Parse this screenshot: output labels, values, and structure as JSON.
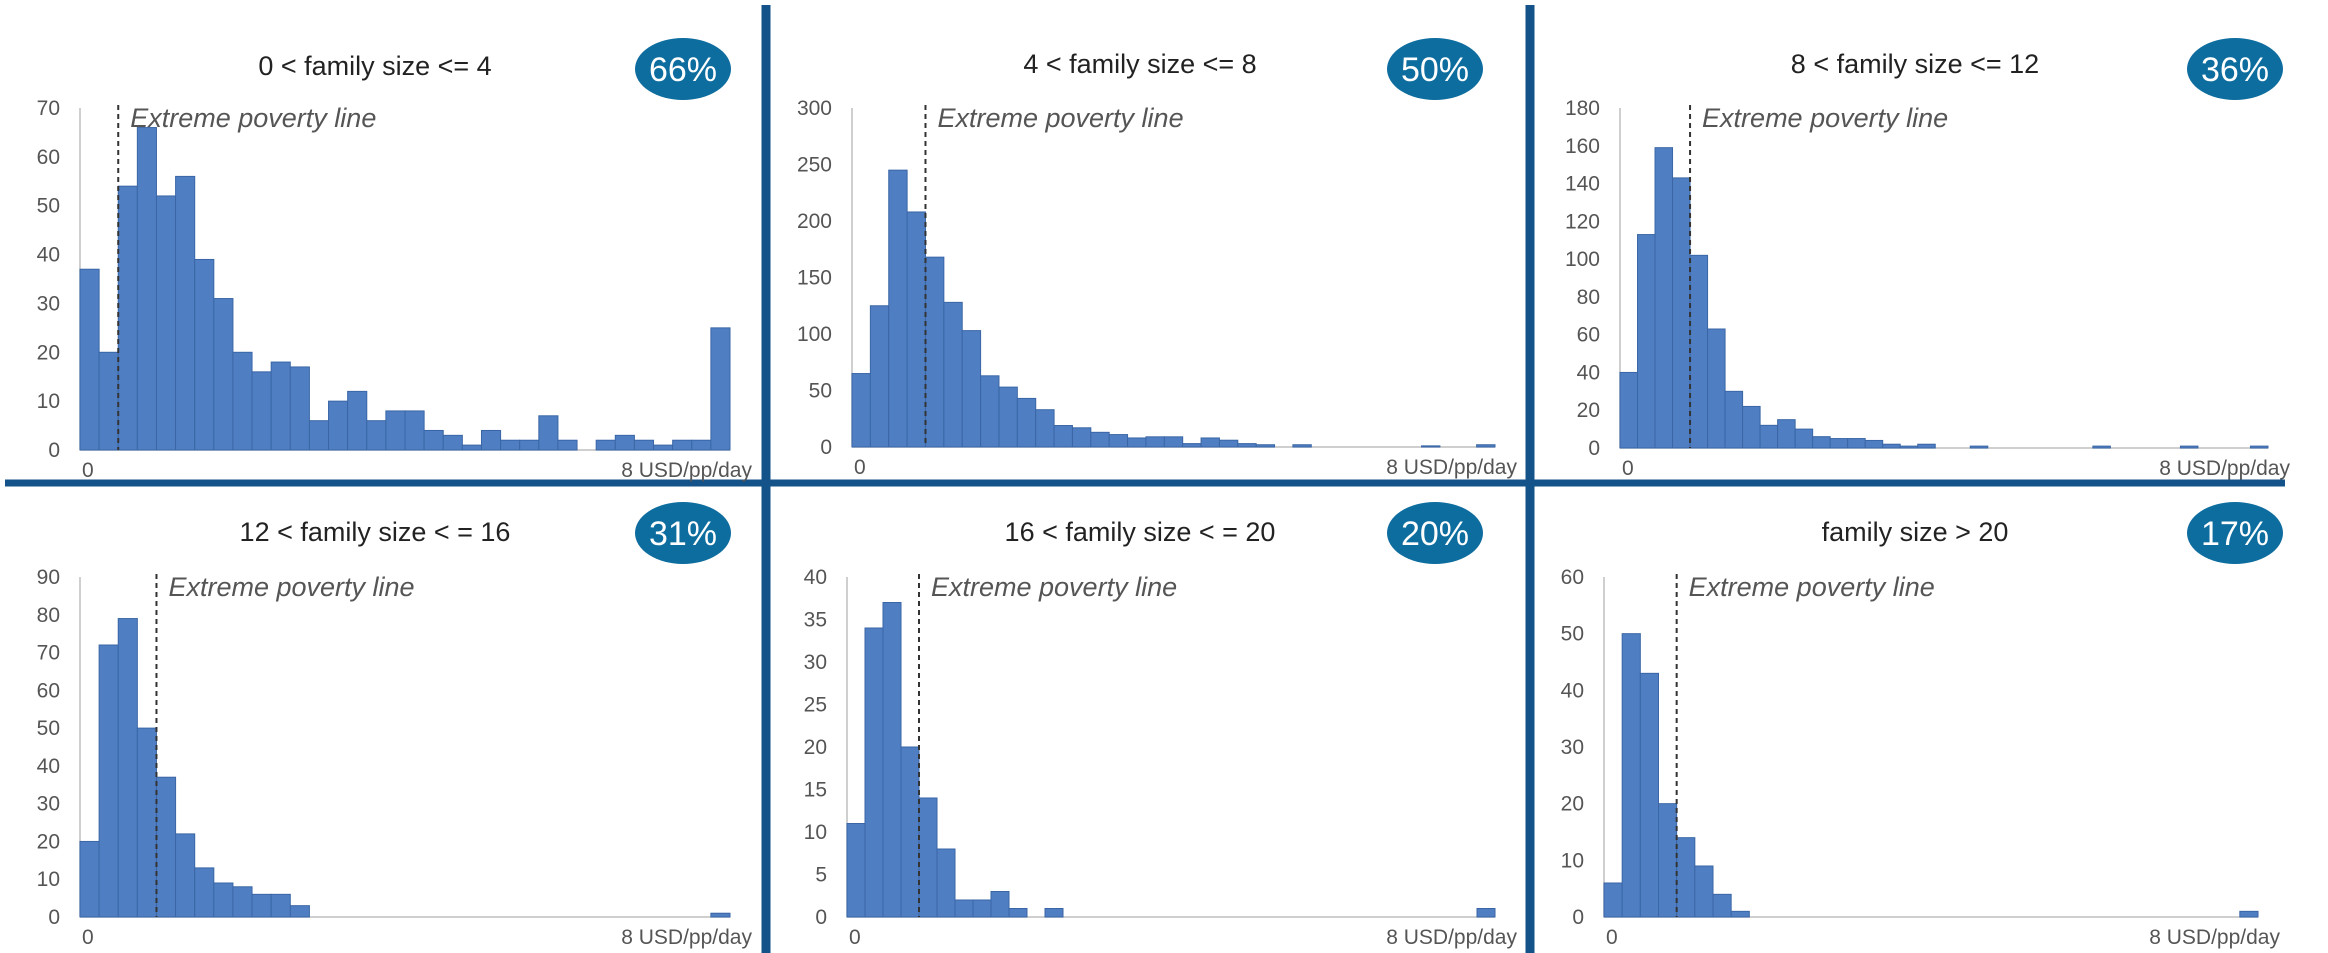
{
  "figure": {
    "colors": {
      "bar": "#4f7fc2",
      "bar_edge": "#3a66a6",
      "badge": "#0e6d9f",
      "divider": "#14528a",
      "poverty_line": "#333333"
    }
  },
  "chart_data": [
    {
      "type": "bar",
      "title": "0 < family size <= 4",
      "badge": "66%",
      "annotation": "Extreme poverty line",
      "poverty_line_bin": 2.0,
      "ylim": [
        0,
        70
      ],
      "yticks": [
        0,
        10,
        20,
        30,
        40,
        50,
        60,
        70
      ],
      "x_tick_left": "0",
      "x_tick_right": "8 USD/pp/day",
      "values": [
        37,
        20,
        54,
        66,
        52,
        56,
        39,
        31,
        20,
        16,
        18,
        17,
        6,
        10,
        12,
        6,
        8,
        8,
        4,
        3,
        1,
        4,
        2,
        2,
        7,
        2,
        0,
        2,
        3,
        2,
        1,
        2,
        2,
        25
      ]
    },
    {
      "type": "bar",
      "title": "4 < family size <= 8",
      "badge": "50%",
      "annotation": "Extreme poverty line",
      "poverty_line_bin": 4.0,
      "ylim": [
        0,
        300
      ],
      "yticks": [
        0,
        50,
        100,
        150,
        200,
        250,
        300
      ],
      "x_tick_left": "0",
      "x_tick_right": "8 USD/pp/day",
      "values": [
        65,
        125,
        245,
        208,
        168,
        128,
        103,
        63,
        53,
        43,
        33,
        19,
        17,
        13,
        11,
        8,
        9,
        9,
        3,
        8,
        6,
        3,
        2,
        0,
        2,
        0,
        0,
        0,
        0,
        0,
        0,
        1,
        0,
        0,
        2
      ]
    },
    {
      "type": "bar",
      "title": "8 < family size <= 12",
      "badge": "36%",
      "annotation": "Extreme poverty line",
      "poverty_line_bin": 4.0,
      "ylim": [
        0,
        180
      ],
      "yticks": [
        0,
        20,
        40,
        60,
        80,
        100,
        120,
        140,
        160,
        180
      ],
      "x_tick_left": "0",
      "x_tick_right": "8 USD/pp/day",
      "values": [
        40,
        113,
        159,
        143,
        102,
        63,
        30,
        22,
        12,
        15,
        10,
        6,
        5,
        5,
        4,
        2,
        1,
        2,
        0,
        0,
        1,
        0,
        0,
        0,
        0,
        0,
        0,
        1,
        0,
        0,
        0,
        0,
        1,
        0,
        0,
        0,
        1
      ]
    },
    {
      "type": "bar",
      "title": "12 < family size < = 16",
      "badge": "31%",
      "annotation": "Extreme poverty line",
      "poverty_line_bin": 4.0,
      "ylim": [
        0,
        90
      ],
      "yticks": [
        0,
        10,
        20,
        30,
        40,
        50,
        60,
        70,
        80,
        90
      ],
      "x_tick_left": "0",
      "x_tick_right": "8 USD/pp/day",
      "values": [
        20,
        72,
        79,
        50,
        37,
        22,
        13,
        9,
        8,
        6,
        6,
        3,
        0,
        0,
        0,
        0,
        0,
        0,
        0,
        0,
        0,
        0,
        0,
        0,
        0,
        0,
        0,
        0,
        0,
        0,
        0,
        0,
        0,
        1
      ]
    },
    {
      "type": "bar",
      "title": "16 < family size < = 20",
      "badge": "20%",
      "annotation": "Extreme poverty line",
      "poverty_line_bin": 4.0,
      "ylim": [
        0,
        40
      ],
      "yticks": [
        0,
        5,
        10,
        15,
        20,
        25,
        30,
        35,
        40
      ],
      "x_tick_left": "0",
      "x_tick_right": "8 USD/pp/day",
      "values": [
        11,
        34,
        37,
        20,
        14,
        8,
        2,
        2,
        3,
        1,
        0,
        1,
        0,
        0,
        0,
        0,
        0,
        0,
        0,
        0,
        0,
        0,
        0,
        0,
        0,
        0,
        0,
        0,
        0,
        0,
        0,
        0,
        0,
        0,
        0,
        1
      ]
    },
    {
      "type": "bar",
      "title": "family size > 20",
      "badge": "17%",
      "annotation": "Extreme poverty line",
      "poverty_line_bin": 4.0,
      "ylim": [
        0,
        60
      ],
      "yticks": [
        0,
        10,
        20,
        30,
        40,
        50,
        60
      ],
      "x_tick_left": "0",
      "x_tick_right": "8 USD/pp/day",
      "values": [
        6,
        50,
        43,
        20,
        14,
        9,
        4,
        1,
        0,
        0,
        0,
        0,
        0,
        0,
        0,
        0,
        0,
        0,
        0,
        0,
        0,
        0,
        0,
        0,
        0,
        0,
        0,
        0,
        0,
        0,
        0,
        0,
        0,
        0,
        0,
        1
      ]
    }
  ]
}
